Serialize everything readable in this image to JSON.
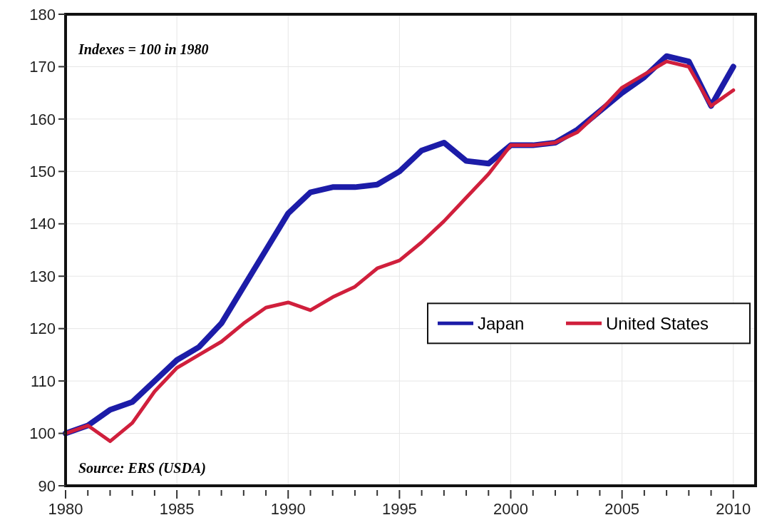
{
  "chart_data": {
    "type": "line",
    "x": [
      1980,
      1981,
      1982,
      1983,
      1984,
      1985,
      1986,
      1987,
      1988,
      1989,
      1990,
      1991,
      1992,
      1993,
      1994,
      1995,
      1996,
      1997,
      1998,
      1999,
      2000,
      2001,
      2002,
      2003,
      2004,
      2005,
      2006,
      2007,
      2008,
      2009,
      2010
    ],
    "series": [
      {
        "name": "Japan",
        "color": "#1c1ca8",
        "values": [
          100,
          101.5,
          104.5,
          106,
          110,
          114,
          116.5,
          121,
          128,
          135,
          142,
          146,
          147,
          147,
          147.5,
          150,
          154,
          155.5,
          152,
          151.5,
          155,
          155,
          155.5,
          158,
          161.5,
          165,
          168,
          172,
          171,
          162.5,
          170
        ]
      },
      {
        "name": "United States",
        "color": "#d01f3c",
        "values": [
          100,
          101.5,
          98.5,
          102,
          108,
          112.5,
          115,
          117.5,
          121,
          124,
          125,
          123.5,
          126,
          128,
          131.5,
          133,
          136.5,
          140.5,
          145,
          149.5,
          155,
          155,
          155.5,
          157.5,
          161.5,
          166,
          168.5,
          171,
          170,
          162.5,
          165.5
        ]
      }
    ],
    "xlim": [
      1980,
      2011
    ],
    "xticks": [
      1980,
      {
        "value": 1981,
        "label": null
      },
      {
        "value": 1982,
        "label": null
      },
      {
        "value": 1983,
        "label": null
      },
      {
        "value": 1984,
        "label": null
      },
      1985,
      {
        "value": 1986,
        "label": null
      },
      {
        "value": 1987,
        "label": null
      },
      {
        "value": 1988,
        "label": null
      },
      {
        "value": 1989,
        "label": null
      },
      1990,
      {
        "value": 1991,
        "label": null
      },
      {
        "value": 1992,
        "label": null
      },
      {
        "value": 1993,
        "label": null
      },
      {
        "value": 1994,
        "label": null
      },
      1995,
      {
        "value": 1996,
        "label": null
      },
      {
        "value": 1997,
        "label": null
      },
      {
        "value": 1998,
        "label": null
      },
      {
        "value": 1999,
        "label": null
      },
      2000,
      {
        "value": 2001,
        "label": null
      },
      {
        "value": 2002,
        "label": null
      },
      {
        "value": 2003,
        "label": null
      },
      {
        "value": 2004,
        "label": null
      },
      2005,
      {
        "value": 2006,
        "label": null
      },
      {
        "value": 2007,
        "label": null
      },
      {
        "value": 2008,
        "label": null
      },
      {
        "value": 2009,
        "label": null
      },
      2010
    ],
    "ylim": [
      90,
      180
    ],
    "yticks": [
      90,
      100,
      110,
      120,
      130,
      140,
      150,
      160,
      170,
      180
    ],
    "grid": true,
    "legend": "right",
    "annotations": [
      "Indexes = 100 in 1980",
      "Source: ERS (USDA)"
    ]
  }
}
